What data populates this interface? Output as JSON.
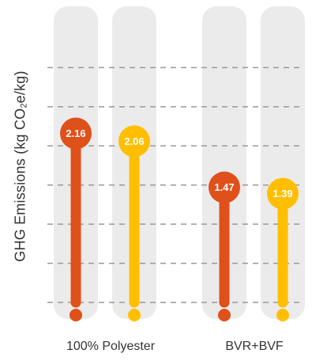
{
  "chart_data": {
    "type": "lollipop",
    "ylabel_parts": {
      "prefix": "GHG Emissions (kg CO",
      "subscript": "2",
      "suffix": "e/kg)"
    },
    "categories": [
      "100% Polyester",
      "BVR+BVF"
    ],
    "bars": [
      {
        "category": "100% Polyester",
        "value": 2.16,
        "label": "2.16",
        "color": "#e0501b"
      },
      {
        "category": "100% Polyester",
        "value": 2.06,
        "label": "2.06",
        "color": "#ffbf00"
      },
      {
        "category": "BVR+BVF",
        "value": 1.47,
        "label": "1.47",
        "color": "#e0501b"
      },
      {
        "category": "BVR+BVF",
        "value": 1.39,
        "label": "1.39",
        "color": "#ffbf00"
      }
    ],
    "ylim": [
      0,
      3.5
    ],
    "grid": true,
    "colors": {
      "track": "#ebebeb",
      "grid": "#999999"
    }
  }
}
